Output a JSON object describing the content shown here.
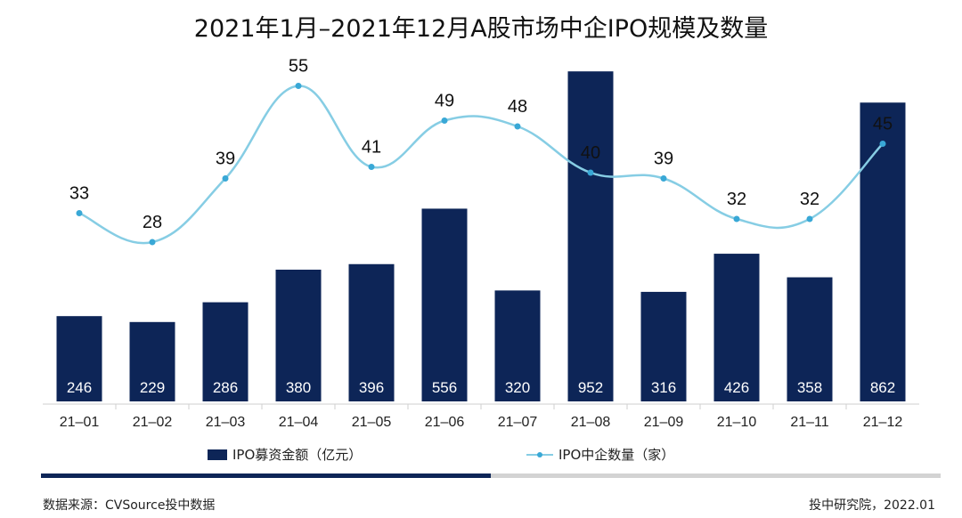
{
  "colors": {
    "bar": "#0d2557",
    "line": "#86cde4",
    "point": "#39a8d6",
    "divider_dark": "#0d2557",
    "divider_light": "#d3d3d3"
  },
  "footer": {
    "source": "数据来源：CVSource投中数据",
    "publisher": "投中研究院，2022.01"
  },
  "chart_data": {
    "type": "bar",
    "title": "2021年1月–2021年12月A股市场中企IPO规模及数量",
    "categories": [
      "21–01",
      "21–02",
      "21–03",
      "21–04",
      "21–05",
      "21–06",
      "21–07",
      "21–08",
      "21–09",
      "21–10",
      "21–11",
      "21–12"
    ],
    "series": [
      {
        "name": "IPO募资金额（亿元）",
        "type": "bar",
        "values": [
          246,
          229,
          286,
          380,
          396,
          556,
          320,
          952,
          316,
          426,
          358,
          862
        ]
      },
      {
        "name": "IPO中企数量（家）",
        "type": "line",
        "values": [
          33,
          28,
          39,
          55,
          41,
          49,
          48,
          40,
          39,
          32,
          32,
          45
        ]
      }
    ],
    "bar_ylim": [
      0,
      1000
    ],
    "line_ylim": [
      0,
      55
    ],
    "grid": false,
    "legend_position": "bottom"
  }
}
